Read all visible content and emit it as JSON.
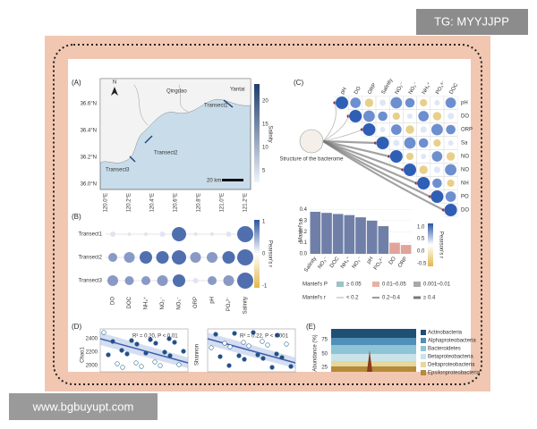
{
  "watermark": {
    "top": "TG: MYYJJPP",
    "bottom": "www.bgbuyupt.com"
  },
  "panel_a": {
    "label": "(A)",
    "lat_ticks": [
      "36.6°N",
      "36.4°N",
      "36.2°N",
      "36.0°N"
    ],
    "lon_ticks": [
      "120.0°E",
      "120.2°E",
      "120.4°E",
      "120.6°E",
      "120.8°E",
      "121.0°E",
      "121.2°E"
    ],
    "places": [
      "Yantai",
      "Qingdao",
      "Transect1",
      "Transect2",
      "Transect3"
    ],
    "north": "N",
    "scale": "20 km",
    "colorbar_title": "Salinity",
    "colorbar_ticks": [
      "20",
      "15",
      "10",
      "5"
    ]
  },
  "panel_b": {
    "label": "(B)",
    "rows": [
      "Transect1",
      "Transect2",
      "Transect3"
    ],
    "columns": [
      "DO",
      "DOC",
      "NH₄⁺",
      "NO₂⁻",
      "NO₃⁻",
      "ORP",
      "pH",
      "PO₄³⁻",
      "Salinity"
    ],
    "colorbar_title": "Pearson's r",
    "colorbar_ticks": [
      "1",
      "0",
      "-1"
    ]
  },
  "panel_c": {
    "label": "(C)",
    "columns": [
      "pH",
      "DO",
      "ORP",
      "Salinity",
      "NO₂⁻",
      "NO₃⁻",
      "NH₄⁺",
      "PO₄³⁻",
      "DOC"
    ],
    "row_labels": [
      "pH",
      "DO",
      "ORP",
      "Sa",
      "NO",
      "NO",
      "NH",
      "PO",
      "DO"
    ],
    "node": "Structure of the bacterome",
    "bars": {
      "y_label": "Mantel's r",
      "categories": [
        "Salinity",
        "NO₃⁻",
        "DOC",
        "NH₄⁺",
        "NO₂⁻",
        "pH",
        "PO₄³⁻",
        "DO",
        "ORP"
      ],
      "values": [
        0.38,
        0.37,
        0.36,
        0.35,
        0.33,
        0.3,
        0.25,
        0.1,
        0.08
      ],
      "colors": [
        "#6f7fa8",
        "#6f7fa8",
        "#6f7fa8",
        "#6f7fa8",
        "#6f7fa8",
        "#6f7fa8",
        "#6f7fa8",
        "#e0a49a",
        "#e0a49a"
      ],
      "ylim": [
        0,
        0.42
      ],
      "yticks": [
        0.4,
        0.3,
        0.2,
        0.1,
        {
          "value": 0,
          "label": "0.0"
        }
      ]
    },
    "colorbar_title": "Pearson's r",
    "colorbar_ticks": [
      "1.0",
      "0.5",
      "0.0",
      "-0.5"
    ],
    "legend": {
      "p_title": "Mantel's P",
      "p_items": [
        "≥ 0.05",
        "0.01–0.05",
        "0.001–0.01"
      ],
      "r_title": "Mantel's r",
      "r_items": [
        "< 0.2",
        "0.2–0.4",
        "≥ 0.4"
      ]
    }
  },
  "panel_d": {
    "label": "(D)",
    "stat1": "R² = 0.20, P < 0.01",
    "stat2": "R² = 0.22, P < 0.001",
    "y1_label": "Chao1",
    "y2_label": "Shannon",
    "yticks": [
      "2400",
      "2200",
      "2000"
    ]
  },
  "panel_e": {
    "label": "(E)",
    "y_label": "Abundance (%)",
    "yticks": [
      "75",
      "50",
      "25"
    ],
    "legend": [
      "Actinobacteria",
      "Alphaproteobacteria",
      "Bacteroidetes",
      "Betaproteobacteria",
      "Deltaproteobacteria",
      "Epsilonproteobacteria"
    ]
  }
}
